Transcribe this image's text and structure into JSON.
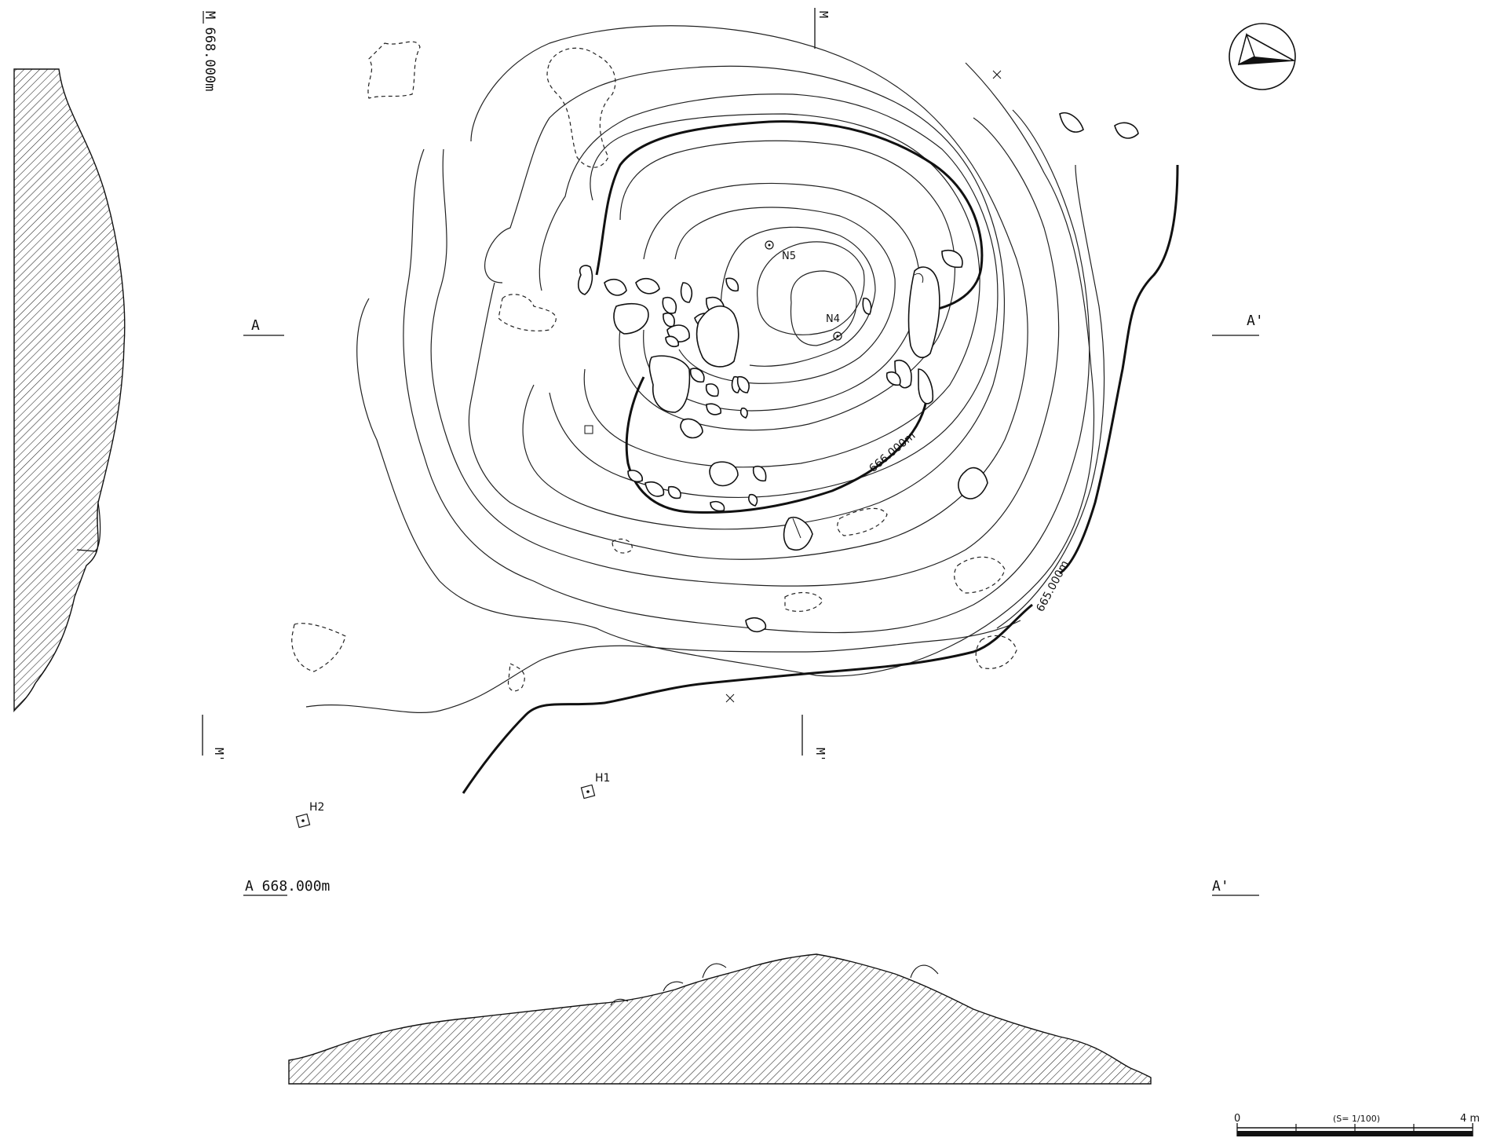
{
  "labels": {
    "section_a": "A",
    "section_a_prime": "A'",
    "profile_a_level": "A 668.000m",
    "profile_a_prime": "A'",
    "profile_m_level": "M 668.000m",
    "m_top": "M",
    "m_prime_left": "M'",
    "m_prime_right": "M'",
    "contour_666": "666.000m",
    "contour_665": "665.000m",
    "point_n4": "N4",
    "point_n5": "N5",
    "point_h1": "H1",
    "point_h2": "H2"
  },
  "scale_bar": {
    "start": "0",
    "end": "4 m",
    "ratio": "(S= 1/100)"
  },
  "icons": {
    "north_arrow": "north-arrow-icon"
  },
  "colors": {
    "ink": "#111111",
    "background": "#ffffff"
  }
}
